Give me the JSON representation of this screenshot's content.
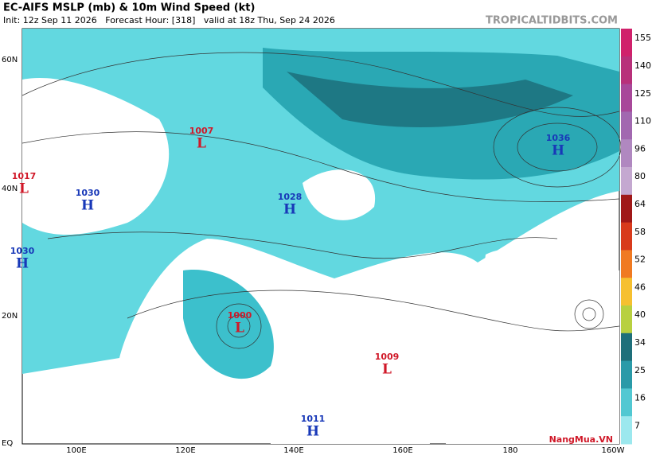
{
  "header": {
    "title": "EC-AIFS MSLP (mb) & 10m Wind Speed (kt)",
    "subtitle": "Init: 12z Sep 11 2026   Forecast Hour: [318]   valid at 18z Thu, Sep 24 2026",
    "source": "TROPICALTIDBITS.COM"
  },
  "map": {
    "lat_labels": [
      "60N",
      "40N",
      "20N",
      "EQ"
    ],
    "lon_labels": [
      "100E",
      "120E",
      "140E",
      "160E",
      "180",
      "160W"
    ],
    "centers": [
      {
        "pressure": 1007,
        "letter": "L"
      },
      {
        "pressure": 1017,
        "letter": "L"
      },
      {
        "pressure": 1030,
        "letter": "H"
      },
      {
        "pressure": 1030,
        "letter": "H"
      },
      {
        "pressure": 1028,
        "letter": "H"
      },
      {
        "pressure": 1036,
        "letter": "H"
      },
      {
        "pressure": 1000,
        "letter": "L"
      },
      {
        "pressure": 1009,
        "letter": "L"
      },
      {
        "pressure": 1011,
        "letter": "H"
      }
    ]
  },
  "colorbar": {
    "ticks": [
      155,
      140,
      125,
      110,
      96,
      80,
      64,
      58,
      52,
      46,
      40,
      34,
      25,
      16,
      7
    ],
    "colors": [
      "#d0216b",
      "#b8307a",
      "#a8489a",
      "#a268b0",
      "#b088c0",
      "#c4a8d0",
      "#a01818",
      "#d83a1c",
      "#f07a22",
      "#f6c030",
      "#b8d040",
      "#1e6f7a",
      "#2a9aa8",
      "#52c8d2",
      "#9ce8ee"
    ]
  },
  "watermark": "NangMua.VN"
}
